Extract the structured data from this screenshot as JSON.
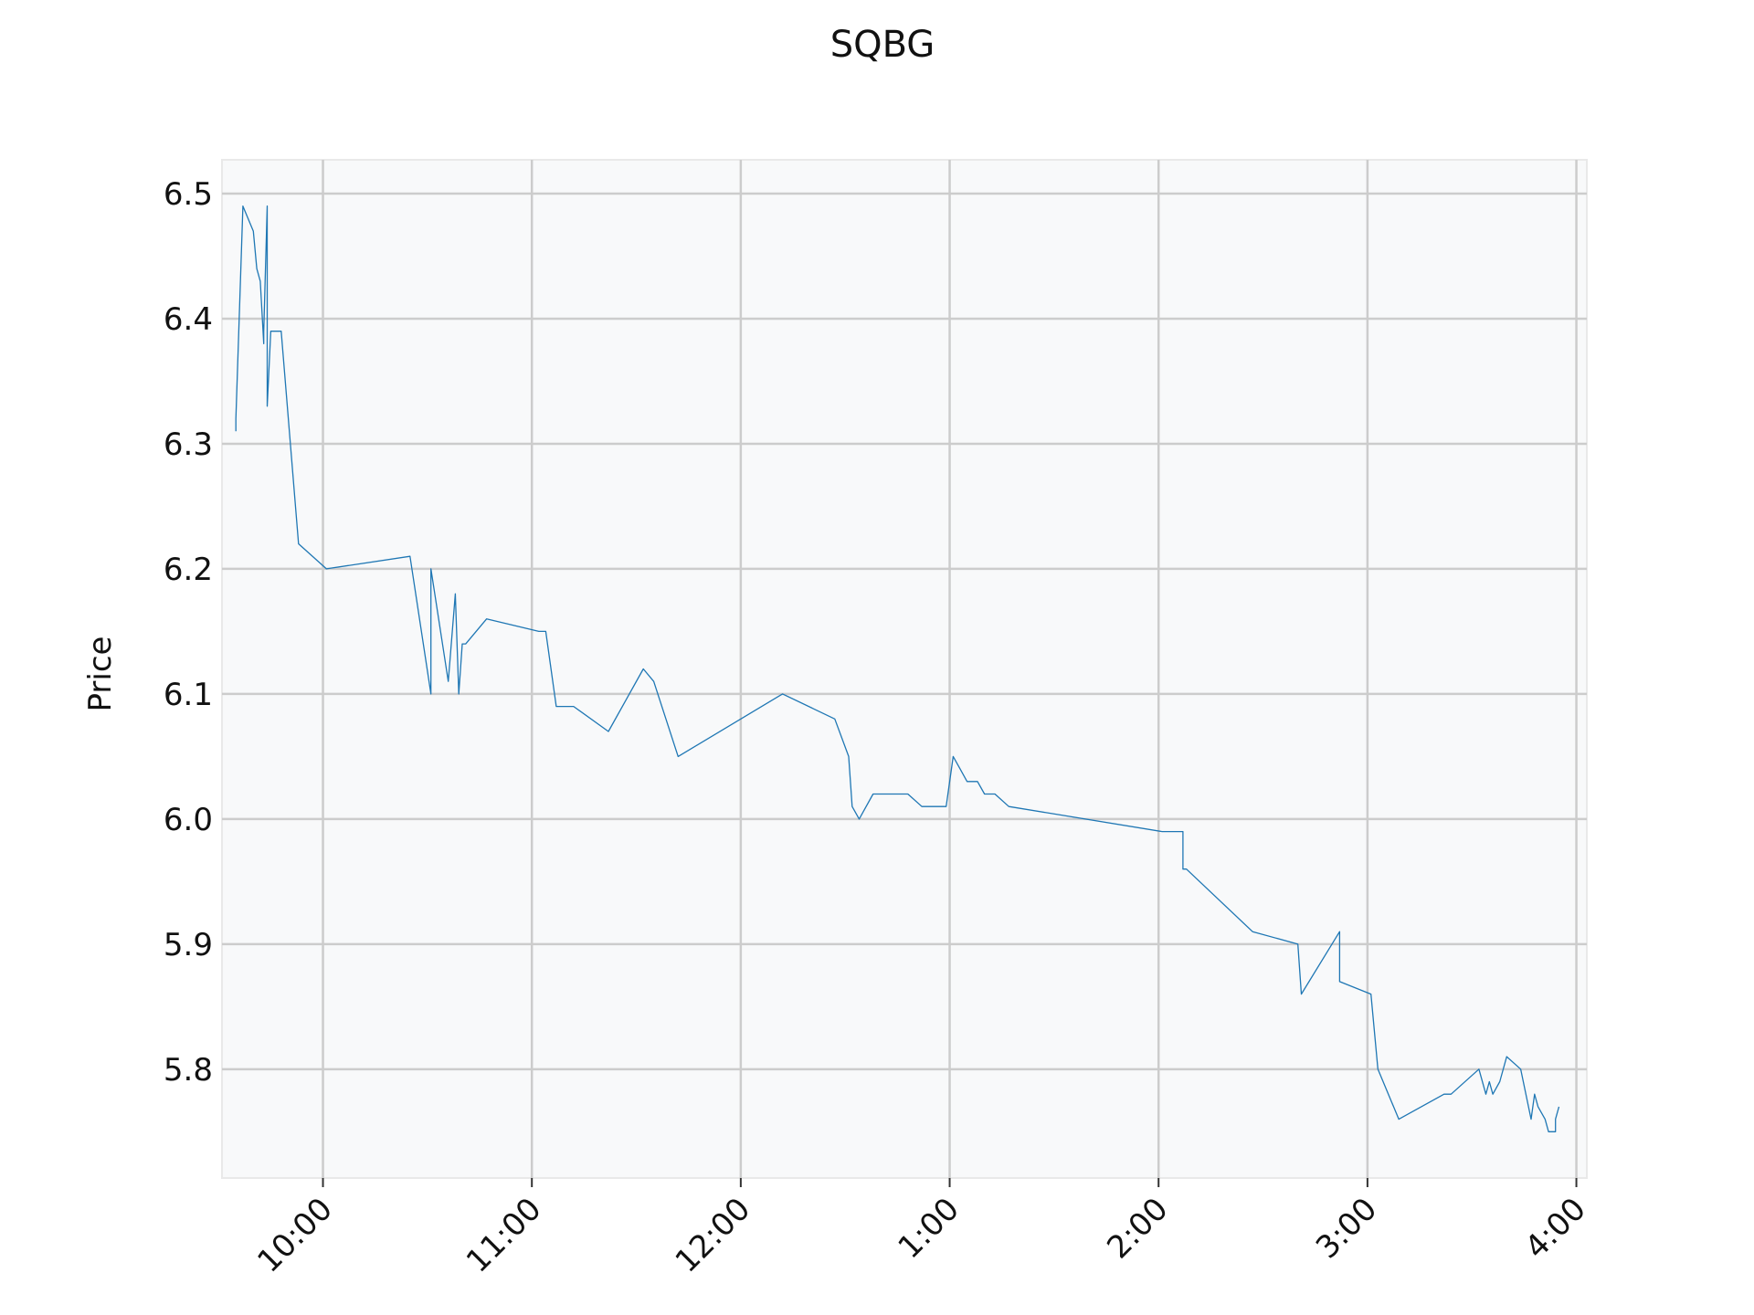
{
  "chart_data": {
    "type": "line",
    "title": "SQBG",
    "xlabel": "",
    "ylabel": "Price",
    "x_tick_labels": [
      "10:00",
      "11:00",
      "12:00",
      "1:00",
      "2:00",
      "3:00",
      "4:00"
    ],
    "x_tick_times": [
      "10:00",
      "11:00",
      "12:00",
      "13:00",
      "14:00",
      "15:00",
      "16:00"
    ],
    "y_tick_labels": [
      "5.8",
      "5.9",
      "6.0",
      "6.1",
      "6.2",
      "6.3",
      "6.4",
      "6.5"
    ],
    "y_ticks": [
      5.8,
      5.9,
      6.0,
      6.1,
      6.2,
      6.3,
      6.4,
      6.5
    ],
    "xlim": [
      "09:31",
      "16:03"
    ],
    "ylim": [
      5.713,
      6.527
    ],
    "grid": true,
    "series": [
      {
        "color": "#1f77b4",
        "x": [
          "09:35",
          "09:35",
          "09:37",
          "09:40",
          "09:41",
          "09:42",
          "09:43",
          "09:43",
          "09:44",
          "09:44",
          "09:45",
          "09:46",
          "09:48",
          "09:53",
          "10:01",
          "10:25",
          "10:31",
          "10:31",
          "10:36",
          "10:38",
          "10:39",
          "10:40",
          "10:41",
          "10:47",
          "11:02",
          "11:04",
          "11:07",
          "11:12",
          "11:22",
          "11:32",
          "11:35",
          "11:42",
          "12:12",
          "12:27",
          "12:31",
          "12:32",
          "12:34",
          "12:38",
          "12:48",
          "12:52",
          "12:59",
          "13:01",
          "13:03",
          "13:05",
          "13:08",
          "13:10",
          "13:13",
          "13:17",
          "14:01",
          "14:07",
          "14:07",
          "14:08",
          "14:27",
          "14:40",
          "14:41",
          "14:52",
          "14:52",
          "15:01",
          "15:03",
          "15:09",
          "15:22",
          "15:24",
          "15:32",
          "15:34",
          "15:35",
          "15:36",
          "15:36",
          "15:38",
          "15:40",
          "15:44",
          "15:47",
          "15:48",
          "15:49",
          "15:51",
          "15:52",
          "15:54",
          "15:54",
          "15:55"
        ],
        "values": [
          6.31,
          6.32,
          6.49,
          6.47,
          6.44,
          6.43,
          6.38,
          6.39,
          6.49,
          6.33,
          6.39,
          6.39,
          6.39,
          6.22,
          6.2,
          6.21,
          6.1,
          6.2,
          6.11,
          6.18,
          6.1,
          6.14,
          6.14,
          6.16,
          6.15,
          6.15,
          6.09,
          6.09,
          6.07,
          6.12,
          6.11,
          6.05,
          6.1,
          6.08,
          6.05,
          6.01,
          6.0,
          6.02,
          6.02,
          6.01,
          6.01,
          6.05,
          6.04,
          6.03,
          6.03,
          6.02,
          6.02,
          6.01,
          5.99,
          5.99,
          5.96,
          5.96,
          5.91,
          5.9,
          5.86,
          5.91,
          5.87,
          5.86,
          5.8,
          5.76,
          5.78,
          5.78,
          5.8,
          5.78,
          5.79,
          5.78,
          5.78,
          5.79,
          5.81,
          5.8,
          5.76,
          5.78,
          5.77,
          5.76,
          5.75,
          5.75,
          5.76,
          5.77
        ]
      }
    ]
  }
}
